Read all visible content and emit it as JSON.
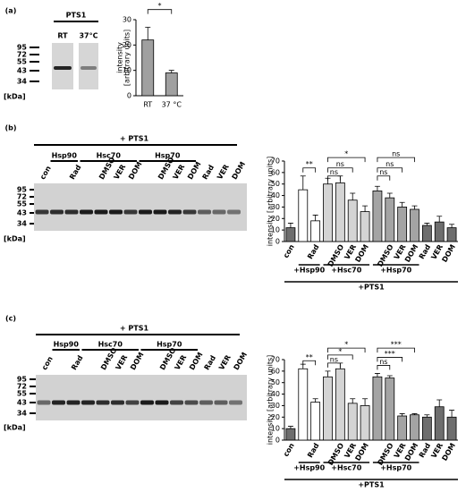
{
  "panel_labels": [
    "(a)",
    "(b)",
    "(c)"
  ],
  "blots": [
    {
      "header": "PTS1",
      "lanes": [
        "RT",
        "37°C"
      ],
      "markers": [
        95,
        72,
        55,
        43,
        34
      ],
      "unit": "[kDa]"
    },
    {
      "header": "+ PTS1",
      "groups": [
        "Hsp90",
        "Hsc70",
        "Hsp70"
      ],
      "lanes": [
        "con",
        null,
        "Rad",
        null,
        "DMSO",
        "VER",
        "DOM",
        null,
        "DMSO",
        "VER",
        "DOM",
        "Rad",
        "VER",
        "DOM"
      ],
      "markers": [
        95,
        72,
        55,
        43,
        34
      ],
      "unit": "[kDa]"
    },
    {
      "header": "+ PTS1",
      "groups": [
        "Hsp90",
        "Hsc70",
        "Hsp70"
      ],
      "lanes": [
        "con",
        null,
        "Rad",
        null,
        "DMSO",
        "VER",
        "DOM",
        null,
        "DMSO",
        "VER",
        "DOM",
        "Rad",
        "VER",
        "DOM"
      ],
      "markers": [
        95,
        72,
        55,
        43,
        34
      ],
      "unit": "[kDa]"
    }
  ],
  "chart_data": [
    {
      "type": "bar",
      "ylabel": [
        "intensity",
        "[arbitrary units]"
      ],
      "categories": [
        "RT",
        "37 °C"
      ],
      "series": [
        {
          "values": [
            22,
            9
          ],
          "errors": [
            5,
            1
          ],
          "colors": [
            "#a0a0a0",
            "#a0a0a0"
          ]
        }
      ],
      "ylim": [
        0,
        30
      ],
      "yticks": [
        0,
        10,
        20,
        30
      ],
      "annotations": [
        "*"
      ]
    },
    {
      "type": "bar",
      "ylabel": "intensity [arbitrary units]",
      "categories": [
        "con",
        null,
        "Rad",
        null,
        "DMSO",
        "VER",
        "DOM",
        null,
        "DMSO",
        "VER",
        "DOM",
        "Rad",
        "VER",
        "DOM"
      ],
      "series": [
        {
          "values": [
            12,
            45,
            18,
            50,
            51,
            36,
            26,
            44,
            38,
            30,
            28,
            14,
            17,
            12
          ],
          "errors": [
            4,
            12,
            5,
            5,
            6,
            6,
            5,
            4,
            4,
            4,
            3,
            2,
            5,
            3
          ],
          "colors": [
            "#6e6e6e",
            "#ffffff",
            "#ffffff",
            "#d4d4d4",
            "#d4d4d4",
            "#d4d4d4",
            "#d4d4d4",
            "#a4a4a4",
            "#a4a4a4",
            "#a4a4a4",
            "#a4a4a4",
            "#6e6e6e",
            "#6e6e6e",
            "#6e6e6e"
          ]
        }
      ],
      "ylim": [
        0,
        70
      ],
      "yticks": [
        0,
        10,
        20,
        30,
        40,
        50,
        60,
        70
      ],
      "groups": [
        "+Hsp90",
        "+Hsc70",
        "+Hsp70"
      ],
      "footer": "+PTS1",
      "annotations": [
        "**",
        "ns",
        "ns",
        "*",
        "ns",
        "ns",
        "ns"
      ]
    },
    {
      "type": "bar",
      "ylabel": "intensity [arbitrary units]",
      "categories": [
        "con",
        null,
        "Rad",
        null,
        "DMSO",
        "VER",
        "DOM",
        null,
        "DMSO",
        "VER",
        "DOM",
        "Rad",
        "VER",
        "DOM"
      ],
      "series": [
        {
          "values": [
            10,
            62,
            33,
            55,
            62,
            32,
            30,
            55,
            54,
            21,
            22,
            20,
            29,
            20
          ],
          "errors": [
            2,
            4,
            3,
            5,
            5,
            4,
            6,
            3,
            2,
            2,
            1,
            2,
            6,
            6
          ],
          "colors": [
            "#6e6e6e",
            "#ffffff",
            "#ffffff",
            "#d4d4d4",
            "#d4d4d4",
            "#d4d4d4",
            "#d4d4d4",
            "#a4a4a4",
            "#a4a4a4",
            "#a4a4a4",
            "#a4a4a4",
            "#6e6e6e",
            "#6e6e6e",
            "#6e6e6e"
          ]
        }
      ],
      "ylim": [
        0,
        70
      ],
      "yticks": [
        0,
        10,
        20,
        30,
        40,
        50,
        60,
        70
      ],
      "groups": [
        "+Hsp90",
        "+Hsc70",
        "+Hsp70"
      ],
      "footer": "+PTS1",
      "annotations": [
        "**",
        "ns",
        "*",
        "*",
        "ns",
        "***",
        "***"
      ]
    }
  ]
}
